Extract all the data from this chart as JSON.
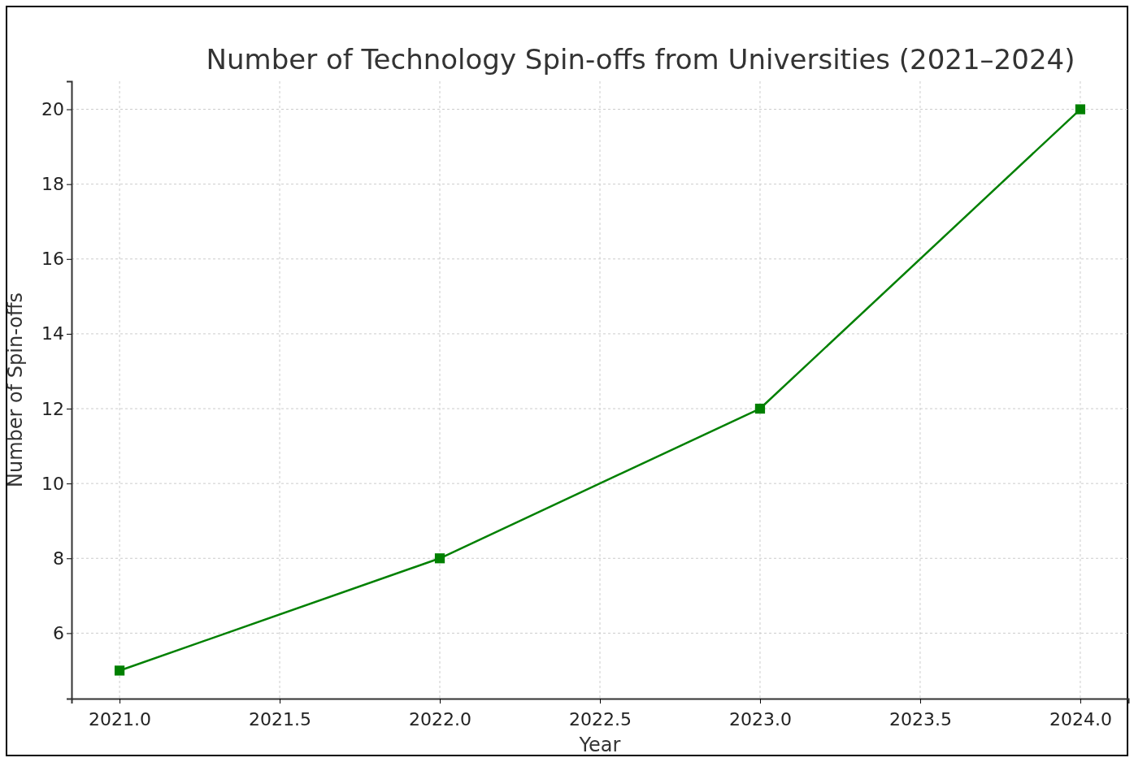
{
  "chart_data": {
    "type": "line",
    "title": "Number of Technology Spin-offs from Universities (2021–2024)",
    "xlabel": "Year",
    "ylabel": "Number of Spin-offs",
    "x": [
      2021,
      2022,
      2023,
      2024
    ],
    "series": [
      {
        "color": "#008000",
        "values": [
          5,
          8,
          12,
          20
        ]
      }
    ],
    "xlim": [
      2020.85,
      2024.15
    ],
    "ylim": [
      4.25,
      20.75
    ],
    "xticks": [
      {
        "value": 2021,
        "label": "2021.0"
      },
      {
        "value": 2021.5,
        "label": "2021.5"
      },
      {
        "value": 2022,
        "label": "2022.0"
      },
      {
        "value": 2022.5,
        "label": "2022.5"
      },
      {
        "value": 2023,
        "label": "2023.0"
      },
      {
        "value": 2023.5,
        "label": "2023.5"
      },
      {
        "value": 2024,
        "label": "2024.0"
      }
    ],
    "yticks": [
      6,
      8,
      10,
      12,
      14,
      16,
      18,
      20
    ],
    "grid": true,
    "marker": "square",
    "line_style": "solid"
  }
}
